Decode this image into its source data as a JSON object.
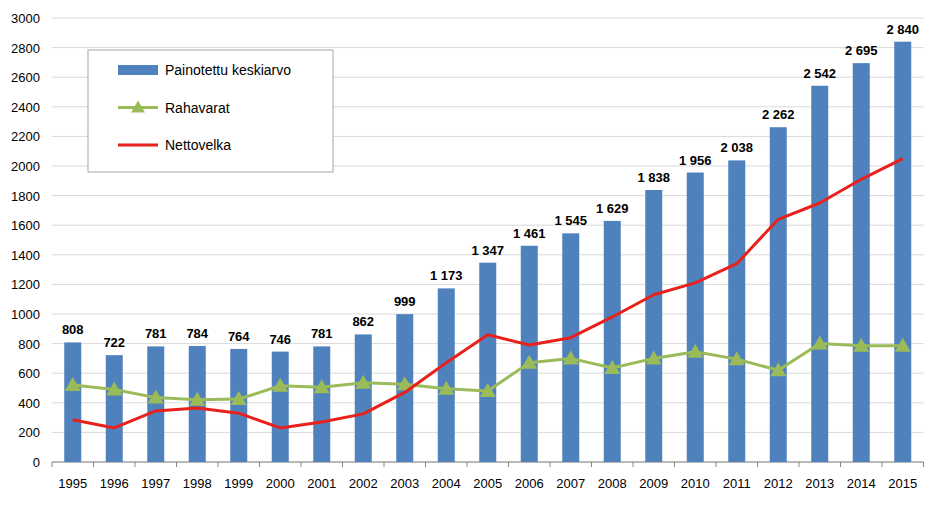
{
  "chart_data": {
    "type": "bar",
    "categories": [
      "1995",
      "1996",
      "1997",
      "1998",
      "1999",
      "2000",
      "2001",
      "2002",
      "2003",
      "2004",
      "2005",
      "2006",
      "2007",
      "2008",
      "2009",
      "2010",
      "2011",
      "2012",
      "2013",
      "2014",
      "2015"
    ],
    "series": [
      {
        "name": "Painotettu keskiarvo",
        "type": "bar",
        "color": "#4f81bd",
        "values": [
          808,
          722,
          781,
          784,
          764,
          746,
          781,
          862,
          999,
          1173,
          1347,
          1461,
          1545,
          1629,
          1838,
          1956,
          2038,
          2262,
          2542,
          2695,
          2840
        ],
        "value_labels": [
          "808",
          "722",
          "781",
          "784",
          "764",
          "746",
          "781",
          "862",
          "999",
          "1 173",
          "1 347",
          "1 461",
          "1 545",
          "1 629",
          "1 838",
          "1 956",
          "2 038",
          "2 262",
          "2 542",
          "2 695",
          "2 840"
        ]
      },
      {
        "name": "Rahavarat",
        "type": "line",
        "color": "#9bbb59",
        "marker": "triangle",
        "line_style": "solid",
        "values": [
          520,
          490,
          435,
          420,
          425,
          515,
          505,
          535,
          525,
          495,
          480,
          670,
          700,
          635,
          700,
          745,
          695,
          620,
          800,
          785,
          785
        ]
      },
      {
        "name": "Nettovelka",
        "type": "line",
        "color": "#e8211c",
        "marker": "none",
        "line_style": "solid",
        "values": [
          285,
          230,
          345,
          365,
          330,
          230,
          270,
          325,
          470,
          670,
          860,
          790,
          840,
          980,
          1130,
          1210,
          1340,
          1640,
          1750,
          1910,
          2050
        ]
      }
    ],
    "ylim": [
      0,
      3000
    ],
    "yticks": [
      0,
      200,
      400,
      600,
      800,
      1000,
      1200,
      1400,
      1600,
      1800,
      2000,
      2200,
      2400,
      2600,
      2800,
      3000
    ],
    "grid": true,
    "legend": "top-left",
    "data_labels": true
  }
}
